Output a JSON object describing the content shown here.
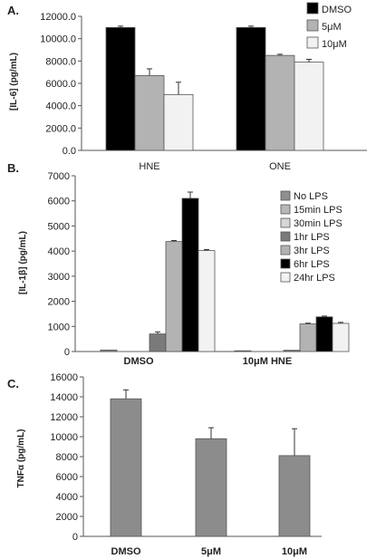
{
  "chart_data": [
    {
      "type": "bar",
      "panel_label": "A.",
      "ylabel": "[IL-6] (pg/mL)",
      "ylim": [
        0,
        12000
      ],
      "yticks": [
        "0.0",
        "2000.0",
        "4000.0",
        "6000.0",
        "8000.0",
        "10000.0",
        "12000.0"
      ],
      "categories": [
        "HNE",
        "ONE"
      ],
      "legend_position": "top-right",
      "series": [
        {
          "name": "DMSO",
          "color": "#000000",
          "values": [
            11000,
            11000
          ],
          "errors": [
            120,
            120
          ]
        },
        {
          "name": "5μM",
          "color": "#b3b3b3",
          "values": [
            6700,
            8500
          ],
          "errors": [
            600,
            100
          ]
        },
        {
          "name": "10μM",
          "color": "#f2f2f2",
          "values": [
            5000,
            7900
          ],
          "errors": [
            1100,
            250
          ]
        }
      ]
    },
    {
      "type": "bar",
      "panel_label": "B.",
      "ylabel": "[IL-1β] (pg/mL)",
      "ylim": [
        0,
        7000
      ],
      "yticks": [
        "0",
        "1000",
        "2000",
        "3000",
        "4000",
        "5000",
        "6000",
        "7000"
      ],
      "categories": [
        "DMSO",
        "10μM HNE"
      ],
      "legend_position": "right",
      "series": [
        {
          "name": "No LPS",
          "color": "#8f8f8f",
          "values": [
            60,
            30
          ],
          "errors": [
            0,
            0
          ]
        },
        {
          "name": "15min LPS",
          "color": "#b8b8b8",
          "values": [
            0,
            0
          ],
          "errors": [
            0,
            0
          ]
        },
        {
          "name": "30min LPS",
          "color": "#d6d6d6",
          "values": [
            0,
            0
          ],
          "errors": [
            0,
            0
          ]
        },
        {
          "name": "1hr LPS",
          "color": "#7a7a7a",
          "values": [
            700,
            50
          ],
          "errors": [
            80,
            0
          ]
        },
        {
          "name": "3hr LPS",
          "color": "#b3b3b3",
          "values": [
            4380,
            1100
          ],
          "errors": [
            40,
            30
          ]
        },
        {
          "name": "6hr LPS",
          "color": "#000000",
          "values": [
            6100,
            1380
          ],
          "errors": [
            250,
            30
          ]
        },
        {
          "name": "24hr LPS",
          "color": "#f2f2f2",
          "values": [
            4020,
            1120
          ],
          "errors": [
            40,
            40
          ]
        }
      ]
    },
    {
      "type": "bar",
      "panel_label": "C.",
      "ylabel": "TNFα (pg/mL)",
      "ylim": [
        0,
        16000
      ],
      "yticks": [
        "0",
        "2000",
        "4000",
        "6000",
        "8000",
        "10000",
        "12000",
        "14000",
        "16000"
      ],
      "categories": [
        "DMSO",
        "5μM",
        "10μM"
      ],
      "series": [
        {
          "color": "#8c8c8c",
          "values": [
            13800,
            9800,
            8100
          ],
          "errors": [
            900,
            1100,
            2700
          ]
        }
      ]
    }
  ]
}
